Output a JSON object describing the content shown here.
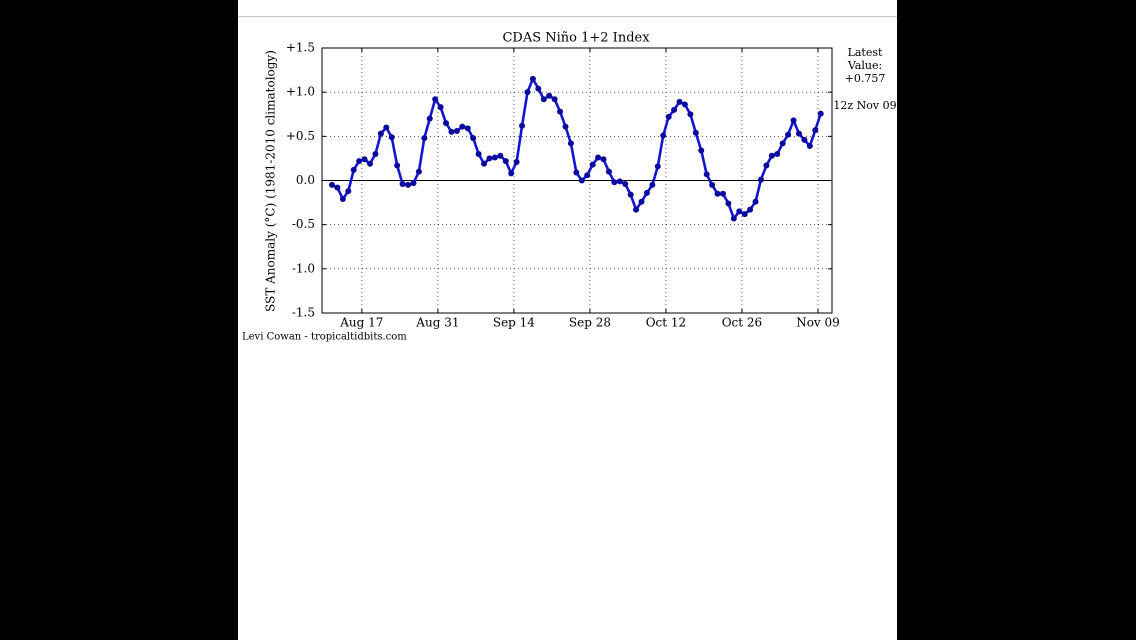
{
  "chart_data": {
    "type": "line",
    "title": "CDAS Niño 1+2 Index",
    "ylabel": "SST Anomaly (°C) (1981-2010 climatology)",
    "credit": "Levi Cowan - tropicaltidbits.com",
    "latest_label": [
      "Latest",
      "Value:"
    ],
    "latest_value": "+0.757",
    "latest_time": "12z Nov 09",
    "categories": [
      null,
      null,
      null,
      null,
      null,
      null,
      "Aug 17",
      null,
      null,
      null,
      null,
      null,
      null,
      null,
      null,
      null,
      null,
      null,
      null,
      null,
      "Aug 31",
      null,
      null,
      null,
      null,
      null,
      null,
      null,
      null,
      null,
      null,
      null,
      null,
      null,
      "Sep 14",
      null,
      null,
      null,
      null,
      null,
      null,
      null,
      null,
      null,
      null,
      null,
      null,
      null,
      "Sep 28",
      null,
      null,
      null,
      null,
      null,
      null,
      null,
      null,
      null,
      null,
      null,
      null,
      null,
      "Oct 12",
      null,
      null,
      null,
      null,
      null,
      null,
      null,
      null,
      null,
      null,
      null,
      null,
      null,
      "Oct 26",
      null,
      null,
      null,
      null,
      null,
      null,
      null,
      null,
      null,
      null,
      null,
      null,
      null,
      "Nov 09"
    ],
    "series": [
      {
        "name": "Niño 1+2",
        "color": "#1414d2",
        "marker_color": "#0a0a9e",
        "values": [
          -0.05,
          -0.08,
          -0.21,
          -0.12,
          0.12,
          0.22,
          0.24,
          0.19,
          0.3,
          0.53,
          0.6,
          0.49,
          0.17,
          -0.04,
          -0.05,
          -0.03,
          0.1,
          0.48,
          0.7,
          0.92,
          0.83,
          0.65,
          0.55,
          0.56,
          0.61,
          0.59,
          0.48,
          0.3,
          0.19,
          0.25,
          0.26,
          0.28,
          0.22,
          0.08,
          0.21,
          0.62,
          1.0,
          1.15,
          1.04,
          0.92,
          0.96,
          0.92,
          0.78,
          0.61,
          0.42,
          0.09,
          0.0,
          0.06,
          0.18,
          0.26,
          0.24,
          0.1,
          -0.02,
          -0.01,
          -0.04,
          -0.16,
          -0.33,
          -0.24,
          -0.14,
          -0.05,
          0.16,
          0.51,
          0.72,
          0.8,
          0.89,
          0.86,
          0.75,
          0.54,
          0.34,
          0.07,
          -0.05,
          -0.15,
          -0.15,
          -0.26,
          -0.43,
          -0.35,
          -0.38,
          -0.33,
          -0.24,
          0.01,
          0.17,
          0.28,
          0.3,
          0.42,
          0.52,
          0.68,
          0.53,
          0.46,
          0.39,
          0.57,
          0.757
        ]
      }
    ],
    "ylim": [
      -1.5,
      1.5
    ],
    "yticks": [
      {
        "value": 1.5,
        "label": "+1.5"
      },
      {
        "value": 1.0,
        "label": "+1.0"
      },
      {
        "value": 0.5,
        "label": "+0.5"
      },
      {
        "value": 0,
        "label": "0.0"
      },
      {
        "value": -0.5,
        "label": "-0.5"
      },
      {
        "value": -1.0,
        "label": "-1.0"
      },
      {
        "value": -1.5,
        "label": "-1.5"
      }
    ],
    "grid": true,
    "zero_line": true
  }
}
